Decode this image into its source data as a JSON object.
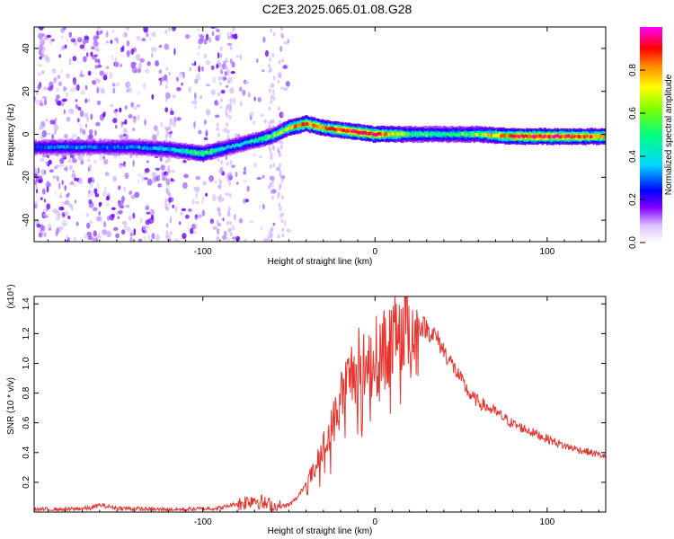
{
  "title": "C2E3.2025.065.01.08.G28",
  "colors": {
    "snr_line": "#e8332d",
    "spectrogram_background": "#ffffff",
    "scatter": "#b070ff"
  },
  "colormap": [
    "#ffffff",
    "#8800ff",
    "#0000ff",
    "#00d8ff",
    "#00ff60",
    "#ffff00",
    "#ff8800",
    "#ff0000",
    "#ff00ff"
  ],
  "chart_data": [
    {
      "type": "heatmap",
      "title": "C2E3.2025.065.01.08.G28",
      "xlabel": "Height of straight line (km)",
      "ylabel": "Frequency (Hz)",
      "xlim": [
        -198,
        134
      ],
      "ylim": [
        -50,
        50
      ],
      "x_ticks": [
        -100,
        0,
        100
      ],
      "x_tick_labels": [
        "-100",
        "0",
        "100"
      ],
      "y_ticks": [
        -40,
        -20,
        0,
        20,
        40
      ],
      "y_tick_labels": [
        "-40",
        "-20",
        "0",
        "20",
        "40"
      ],
      "colorbar": {
        "label": "Normalized spectral amplitude",
        "range": [
          0,
          1
        ],
        "ticks": [
          0.0,
          0.2,
          0.4,
          0.6,
          0.8
        ],
        "tick_labels": [
          "0.0",
          "0.2",
          "0.4",
          "0.6",
          "0.8"
        ]
      },
      "ridge": {
        "x": [
          -198,
          -180,
          -160,
          -140,
          -120,
          -110,
          -100,
          -90,
          -80,
          -70,
          -60,
          -50,
          -45,
          -40,
          -35,
          -30,
          -20,
          -10,
          0,
          20,
          40,
          60,
          80,
          100,
          120,
          134
        ],
        "frequency": [
          -6,
          -6,
          -6,
          -6,
          -7,
          -8,
          -9,
          -7,
          -5,
          -3,
          -1,
          3,
          4,
          5,
          4,
          3,
          2,
          1,
          0,
          0,
          0,
          0,
          -1,
          -1,
          -1,
          -1
        ],
        "amplitude": [
          0.3,
          0.35,
          0.32,
          0.35,
          0.4,
          0.45,
          0.55,
          0.45,
          0.4,
          0.45,
          0.55,
          0.7,
          0.8,
          0.85,
          0.82,
          0.78,
          0.9,
          0.95,
          0.9,
          0.55,
          0.5,
          0.6,
          0.9,
          0.95,
          0.85,
          0.75
        ]
      },
      "noise_region": [
        -198,
        -50
      ]
    },
    {
      "type": "line",
      "xlabel": "Height of straight line (km)",
      "ylabel": "SNR (10 * v/v)",
      "y_scale_label": "(x10⁴)",
      "xlim": [
        -198,
        134
      ],
      "ylim": [
        0,
        1.45
      ],
      "x_ticks": [
        -100,
        0,
        100
      ],
      "x_tick_labels": [
        "-100",
        "0",
        "100"
      ],
      "y_ticks": [
        0.2,
        0.4,
        0.6,
        0.8,
        1.0,
        1.2,
        1.4
      ],
      "y_tick_labels": [
        "0.2",
        "0.4",
        "0.6",
        "0.8",
        "1.0",
        "1.2",
        "1.4"
      ],
      "series": [
        {
          "x": [
            -198,
            -180,
            -165,
            -160,
            -150,
            -130,
            -110,
            -90,
            -80,
            -75,
            -70,
            -65,
            -60,
            -55,
            -50,
            -45,
            -40,
            -35,
            -30,
            -25,
            -20,
            -15,
            -10,
            -5,
            0,
            5,
            10,
            15,
            18,
            20,
            25,
            30,
            35,
            40,
            45,
            50,
            55,
            60,
            70,
            80,
            90,
            100,
            110,
            120,
            134
          ],
          "y": [
            0.02,
            0.02,
            0.03,
            0.05,
            0.03,
            0.02,
            0.02,
            0.03,
            0.06,
            0.08,
            0.1,
            0.07,
            0.05,
            0.04,
            0.05,
            0.1,
            0.2,
            0.3,
            0.45,
            0.6,
            0.8,
            0.95,
            1.05,
            1.0,
            1.1,
            1.15,
            1.2,
            1.25,
            1.35,
            1.25,
            1.28,
            1.25,
            1.2,
            1.1,
            1.0,
            0.9,
            0.8,
            0.75,
            0.68,
            0.6,
            0.55,
            0.5,
            0.45,
            0.42,
            0.38
          ]
        }
      ]
    }
  ]
}
